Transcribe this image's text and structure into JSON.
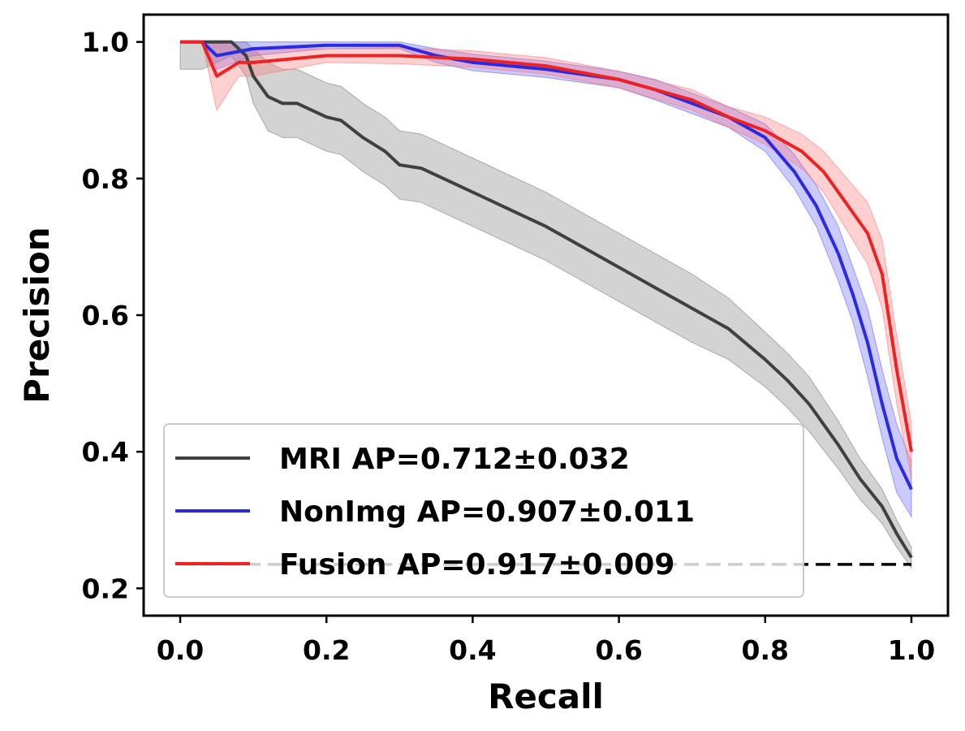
{
  "chart_data": {
    "type": "line",
    "xlabel": "Recall",
    "ylabel": "Precision",
    "xlim": [
      -0.05,
      1.05
    ],
    "ylim": [
      0.16,
      1.04
    ],
    "xticks": [
      "0.0",
      "0.2",
      "0.4",
      "0.6",
      "0.8",
      "1.0"
    ],
    "yticks": [
      "0.2",
      "0.4",
      "0.6",
      "0.8",
      "1.0"
    ],
    "legend_position": "lower-left",
    "baseline": {
      "y": 0.235,
      "x": [
        0.0,
        1.0
      ],
      "style": "dashed"
    },
    "series": [
      {
        "name": "MRI AP=0.712±0.032",
        "color": "#404040",
        "band_color": "#808080",
        "x": [
          0.0,
          0.03,
          0.07,
          0.09,
          0.1,
          0.12,
          0.14,
          0.16,
          0.2,
          0.22,
          0.25,
          0.28,
          0.3,
          0.33,
          0.38,
          0.42,
          0.46,
          0.5,
          0.55,
          0.6,
          0.65,
          0.7,
          0.75,
          0.8,
          0.83,
          0.86,
          0.9,
          0.93,
          0.96,
          0.98,
          1.0
        ],
        "y": [
          1.0,
          1.0,
          1.0,
          0.98,
          0.95,
          0.92,
          0.91,
          0.91,
          0.89,
          0.885,
          0.86,
          0.84,
          0.82,
          0.815,
          0.79,
          0.77,
          0.75,
          0.73,
          0.7,
          0.67,
          0.64,
          0.61,
          0.58,
          0.535,
          0.505,
          0.47,
          0.41,
          0.36,
          0.32,
          0.28,
          0.245
        ],
        "band": [
          0.04,
          0.04,
          0.02,
          0.03,
          0.04,
          0.05,
          0.05,
          0.05,
          0.05,
          0.05,
          0.05,
          0.05,
          0.05,
          0.05,
          0.05,
          0.05,
          0.05,
          0.05,
          0.05,
          0.05,
          0.05,
          0.05,
          0.045,
          0.04,
          0.04,
          0.04,
          0.035,
          0.03,
          0.025,
          0.02,
          0.015
        ]
      },
      {
        "name": "NonImg AP=0.907±0.011",
        "color": "#2a2ae0",
        "band_color": "#6666ff",
        "x": [
          0.0,
          0.03,
          0.05,
          0.1,
          0.2,
          0.3,
          0.35,
          0.4,
          0.5,
          0.6,
          0.65,
          0.7,
          0.75,
          0.8,
          0.84,
          0.87,
          0.9,
          0.92,
          0.94,
          0.96,
          0.98,
          1.0
        ],
        "y": [
          1.0,
          1.0,
          0.98,
          0.99,
          0.995,
          0.995,
          0.98,
          0.97,
          0.96,
          0.945,
          0.93,
          0.91,
          0.89,
          0.86,
          0.81,
          0.76,
          0.69,
          0.63,
          0.56,
          0.47,
          0.39,
          0.345
        ],
        "band": [
          0.0,
          0.0,
          0.02,
          0.01,
          0.005,
          0.005,
          0.01,
          0.012,
          0.012,
          0.012,
          0.015,
          0.015,
          0.015,
          0.02,
          0.025,
          0.03,
          0.04,
          0.04,
          0.05,
          0.05,
          0.05,
          0.04
        ]
      },
      {
        "name": "Fusion AP=0.917±0.009",
        "color": "#ee2222",
        "band_color": "#ff7777",
        "x": [
          0.0,
          0.03,
          0.05,
          0.08,
          0.1,
          0.2,
          0.3,
          0.4,
          0.5,
          0.6,
          0.7,
          0.75,
          0.8,
          0.85,
          0.88,
          0.9,
          0.92,
          0.94,
          0.96,
          0.98,
          1.0
        ],
        "y": [
          1.0,
          1.0,
          0.95,
          0.97,
          0.97,
          0.98,
          0.98,
          0.975,
          0.965,
          0.945,
          0.915,
          0.89,
          0.87,
          0.84,
          0.81,
          0.78,
          0.75,
          0.72,
          0.66,
          0.52,
          0.4
        ],
        "band": [
          0.0,
          0.0,
          0.05,
          0.02,
          0.02,
          0.01,
          0.012,
          0.012,
          0.012,
          0.012,
          0.015,
          0.015,
          0.02,
          0.025,
          0.03,
          0.035,
          0.04,
          0.045,
          0.05,
          0.05,
          0.04
        ]
      }
    ]
  }
}
